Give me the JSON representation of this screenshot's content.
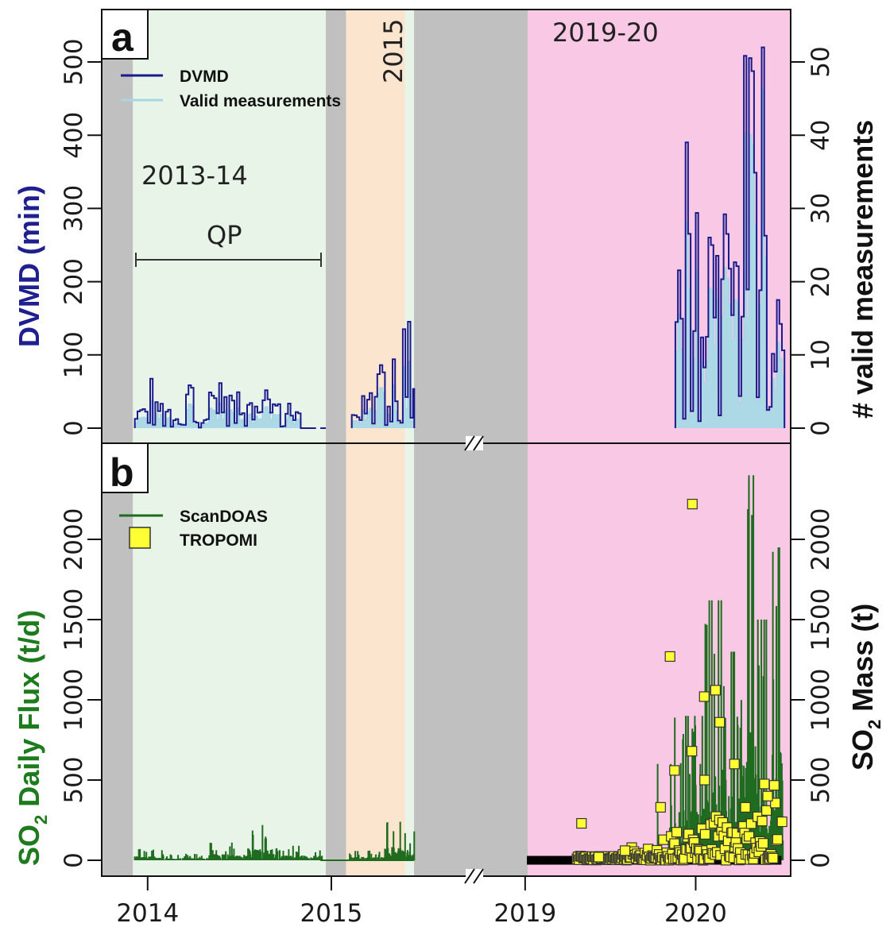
{
  "colors": {
    "dvmd": "#1a1a8c",
    "valid": "#a9d6e5",
    "valid_fill": "#add8e6",
    "scandoas": "#1f6b1f",
    "tropomi_fill": "#ffff33",
    "tropomi_edge": "#444400",
    "period_green": "#e8f4e8",
    "period_orange": "#fbe5cf",
    "period_pink": "#f8c8e4",
    "gap_gray": "#c0c0c0",
    "left_label_a": "#1f1f8f",
    "left_label_b": "#1d7a1d"
  },
  "panel_a": {
    "letter": "a",
    "ylabel_left": "DVMD (min)",
    "ylabel_right": "# valid measurements",
    "left_ticks": [
      "0",
      "100",
      "200",
      "300",
      "400",
      "500"
    ],
    "right_ticks": [
      "0",
      "10",
      "20",
      "30",
      "40",
      "50"
    ],
    "legend": [
      "DVMD",
      "Valid measurements"
    ],
    "period_labels": {
      "p1": "2013-14",
      "p2": "2015",
      "p3": "2019-20"
    },
    "qp_label": "QP"
  },
  "panel_b": {
    "letter": "b",
    "ylabel_left_pre": "SO",
    "ylabel_left_sub": "2",
    "ylabel_left_post": " Daily Flux (t/d)",
    "ylabel_right_pre": "SO",
    "ylabel_right_sub": "2",
    "ylabel_right_post": " Mass (t)",
    "left_ticks": [
      "0",
      "500",
      "1000",
      "1500",
      "2000"
    ],
    "right_ticks": [
      "0",
      "500",
      "1000",
      "1500",
      "2000"
    ],
    "legend": [
      "ScanDOAS",
      "TROPOMI"
    ]
  },
  "x_ticks": [
    "2014",
    "2015",
    "2019",
    "2020"
  ],
  "chart_data": [
    {
      "type": "line",
      "panel": "a",
      "x_axis": "date (broken axis between 2015 and 2019)",
      "ylabel": "DVMD (min)",
      "ylabel_right": "# valid measurements",
      "ylim": [
        0,
        560
      ],
      "ylim_right": [
        0,
        56
      ],
      "legend_placement": "top-left",
      "periods": [
        {
          "label": "2013-14",
          "start": "2013-12",
          "end": "2014-12",
          "shade": "green"
        },
        {
          "label": "2015",
          "start": "2015-02",
          "end": "2015-06",
          "shade": "orange"
        },
        {
          "label": "2019-20",
          "start": "2019-02",
          "end": "2020-06",
          "shade": "pink"
        }
      ],
      "annotation": {
        "label": "QP",
        "start": "2013-12",
        "end": "2014-12"
      },
      "series": [
        {
          "name": "DVMD",
          "axis": "left",
          "x": [
            "2013-12",
            "2014-01",
            "2014-02",
            "2014-03",
            "2014-04",
            "2014-05",
            "2014-06",
            "2014-07",
            "2014-08",
            "2014-09",
            "2014-10",
            "2014-11",
            "2015-02",
            "2015-03",
            "2015-04",
            "2015-05",
            "2015-06",
            "2019-11",
            "2019-12",
            "2020-01",
            "2020-02",
            "2020-03",
            "2020-04",
            "2020-05",
            "2020-06"
          ],
          "values": [
            36,
            72,
            36,
            72,
            18,
            72,
            72,
            36,
            72,
            36,
            36,
            0,
            18,
            72,
            110,
            145,
            160,
            360,
            415,
            300,
            320,
            440,
            555,
            540,
            180
          ]
        },
        {
          "name": "Valid measurements",
          "axis": "right",
          "x": [
            "2013-12",
            "2014-01",
            "2014-02",
            "2014-03",
            "2014-04",
            "2014-05",
            "2014-06",
            "2014-07",
            "2014-08",
            "2014-09",
            "2014-10",
            "2014-11",
            "2015-02",
            "2015-03",
            "2015-04",
            "2015-05",
            "2015-06",
            "2019-11",
            "2019-12",
            "2020-01",
            "2020-02",
            "2020-03",
            "2020-04",
            "2020-05",
            "2020-06"
          ],
          "values": [
            2,
            4,
            2,
            4,
            1,
            4,
            4,
            2,
            4,
            2,
            2,
            0,
            1,
            4,
            7,
            9,
            10,
            26,
            30,
            22,
            24,
            34,
            44,
            48,
            12
          ]
        }
      ]
    },
    {
      "type": "line",
      "panel": "b",
      "x_axis": "date (broken axis between 2015 and 2019)",
      "ylabel": "SO2 Daily Flux (t/d)",
      "ylabel_right": "SO2 Mass (t)",
      "ylim": [
        0,
        2450
      ],
      "ylim_right": [
        0,
        2450
      ],
      "legend_placement": "top-left",
      "series": [
        {
          "name": "ScanDOAS",
          "axis": "left",
          "x": [
            "2013-12",
            "2014-03",
            "2014-06",
            "2014-08",
            "2014-10",
            "2015-03",
            "2015-05",
            "2015-06",
            "2019-10",
            "2019-12",
            "2020-02",
            "2020-03",
            "2020-04",
            "2020-05",
            "2020-06"
          ],
          "values": [
            70,
            40,
            110,
            220,
            90,
            60,
            240,
            180,
            600,
            900,
            1620,
            1300,
            2400,
            1500,
            1950
          ]
        },
        {
          "name": "TROPOMI",
          "type": "scatter",
          "axis": "right",
          "x": [
            "2019-05",
            "2019-06",
            "2019-08",
            "2019-10",
            "2019-11",
            "2019-11",
            "2019-12",
            "2019-12",
            "2020-01",
            "2020-01",
            "2020-02",
            "2020-02",
            "2020-03",
            "2020-04",
            "2020-05",
            "2020-06"
          ],
          "values": [
            230,
            20,
            60,
            330,
            1270,
            560,
            2220,
            680,
            1020,
            500,
            1060,
            860,
            600,
            330,
            400,
            240
          ]
        }
      ]
    }
  ]
}
